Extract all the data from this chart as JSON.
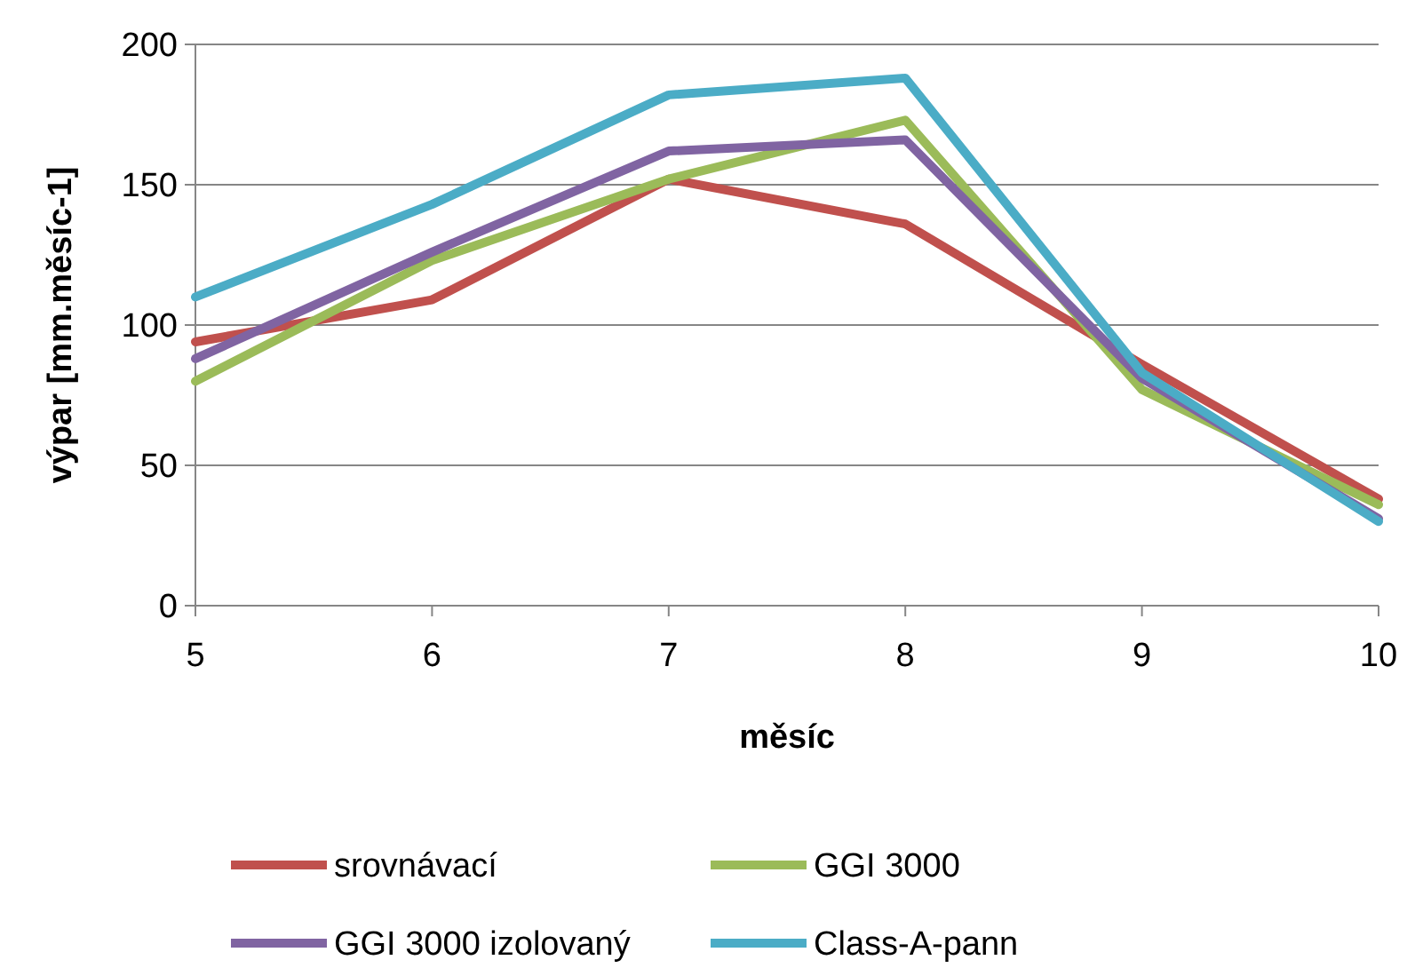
{
  "chart_data": {
    "type": "line",
    "xlabel": "měsíc",
    "ylabel": "výpar [mm.měsíc-1]",
    "x": [
      5,
      6,
      7,
      8,
      9,
      10
    ],
    "xlim": [
      5,
      10
    ],
    "xticks": [
      5,
      6,
      7,
      8,
      9,
      10
    ],
    "ylim": [
      0,
      200
    ],
    "yticks": [
      0,
      50,
      100,
      150,
      200
    ],
    "grid": "y",
    "legend": "bottom",
    "marker": "none",
    "line_style": "solid",
    "series": [
      {
        "name": "srovnávací",
        "color": "#c0504d",
        "values": [
          94,
          109,
          152,
          136,
          86,
          38
        ]
      },
      {
        "name": "GGI 3000",
        "color": "#9bbb59",
        "values": [
          80,
          123,
          152,
          173,
          77,
          36
        ]
      },
      {
        "name": "GGI 3000 izolovaný",
        "color": "#8064a2",
        "values": [
          88,
          126,
          162,
          166,
          81,
          31
        ]
      },
      {
        "name": "Class-A-pann",
        "color": "#4bacc6",
        "values": [
          110,
          143,
          182,
          188,
          83,
          30
        ]
      }
    ]
  }
}
